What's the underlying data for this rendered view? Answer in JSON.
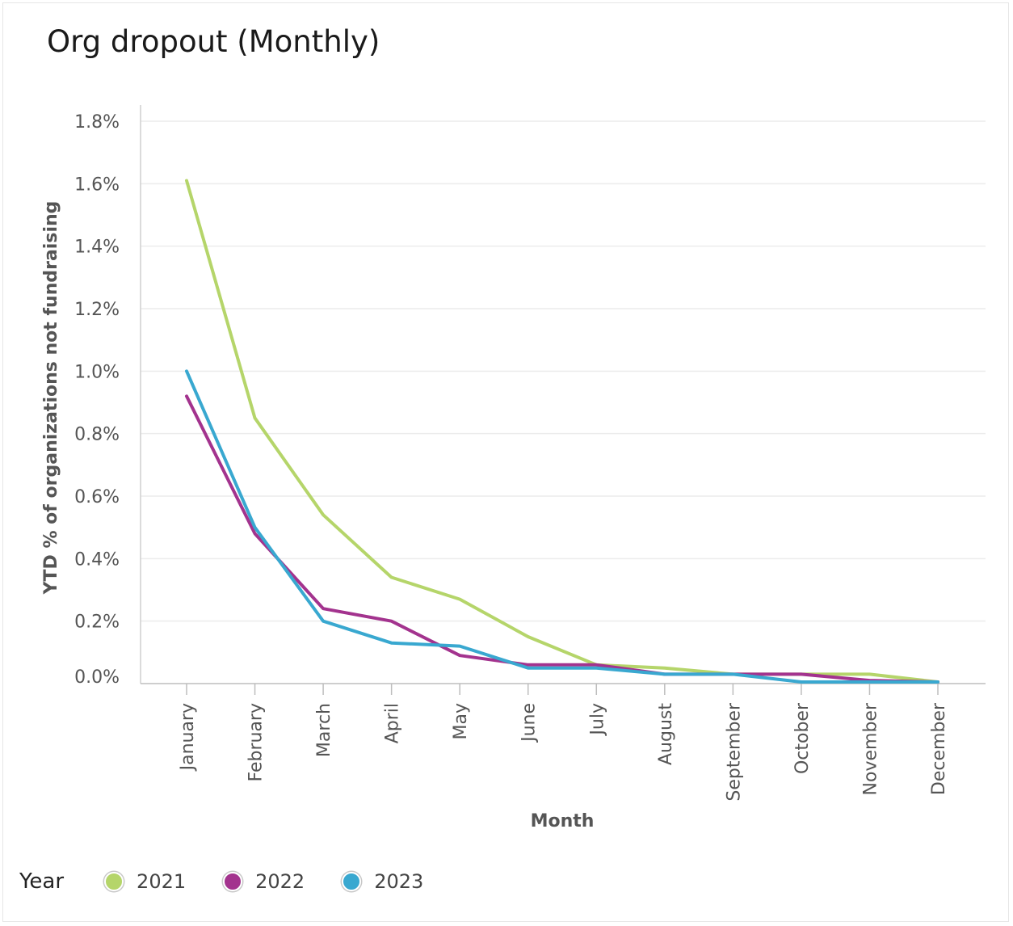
{
  "title": "Org dropout (Monthly)",
  "legend": {
    "title": "Year",
    "items": [
      {
        "label": "2021",
        "color": "#b5d56a"
      },
      {
        "label": "2022",
        "color": "#a3338e"
      },
      {
        "label": "2023",
        "color": "#39a8d0"
      }
    ]
  },
  "chart_data": {
    "type": "line",
    "xlabel": "Month",
    "ylabel": "YTD % of organizations not fundraising",
    "ylim": [
      0,
      1.8
    ],
    "y_ticks": [
      "0.0%",
      "0.2%",
      "0.4%",
      "0.6%",
      "0.8%",
      "1.0%",
      "1.2%",
      "1.4%",
      "1.6%",
      "1.8%"
    ],
    "grid": true,
    "legend_position": "bottom-left",
    "categories": [
      "January",
      "February",
      "March",
      "April",
      "May",
      "June",
      "July",
      "August",
      "September",
      "October",
      "November",
      "December"
    ],
    "series": [
      {
        "name": "2021",
        "color": "#b5d56a",
        "values": [
          1.61,
          0.85,
          0.54,
          0.34,
          0.27,
          0.15,
          0.06,
          0.05,
          0.03,
          0.03,
          0.03,
          0.0
        ]
      },
      {
        "name": "2022",
        "color": "#a3338e",
        "values": [
          0.92,
          0.48,
          0.24,
          0.2,
          0.09,
          0.06,
          0.06,
          0.03,
          0.03,
          0.03,
          0.01,
          0.0
        ]
      },
      {
        "name": "2023",
        "color": "#39a8d0",
        "values": [
          1.0,
          0.5,
          0.2,
          0.13,
          0.12,
          0.05,
          0.05,
          0.03,
          0.03,
          0.0,
          0.0,
          0.0
        ]
      }
    ]
  }
}
